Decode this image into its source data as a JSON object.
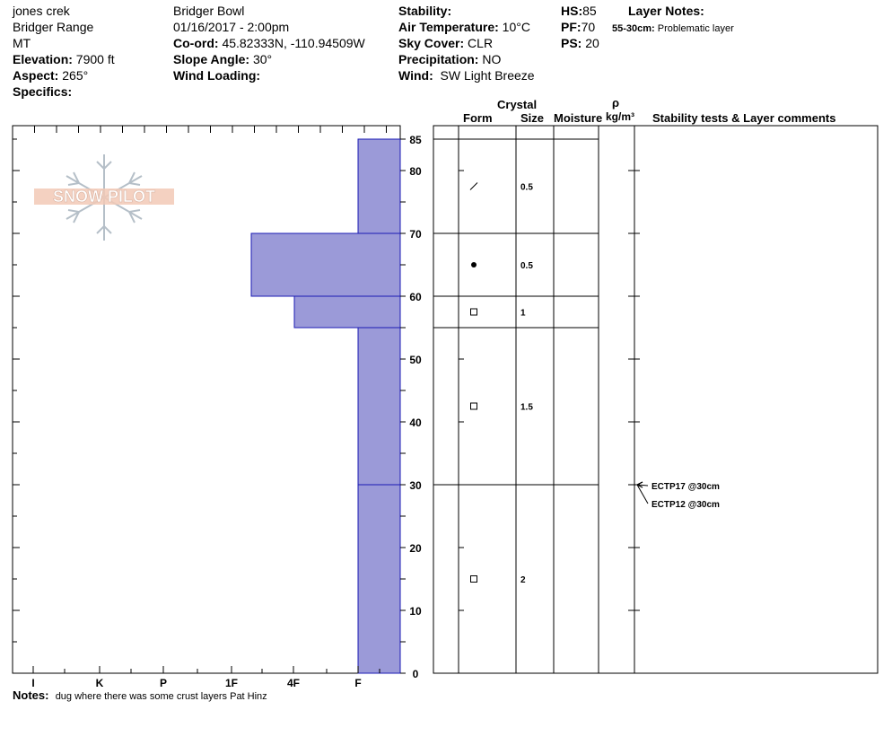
{
  "header": {
    "col1": [
      "jones crek",
      "Bridger Range",
      "MT"
    ],
    "elevation": {
      "label": "Elevation:",
      "value": "7900 ft"
    },
    "aspect": {
      "label": "Aspect:",
      "value": "265°"
    },
    "specifics": {
      "label": "Specifics:",
      "value": ""
    },
    "location": "Bridger Bowl",
    "datetime": "01/16/2017 - 2:00pm",
    "coord": {
      "label": "Co-ord:",
      "value": "45.82333N, -110.94509W"
    },
    "slope": {
      "label": "Slope Angle:",
      "value": "30°"
    },
    "wind_loading": {
      "label": "Wind Loading:",
      "value": ""
    },
    "stability": {
      "label": "Stability:",
      "value": ""
    },
    "air_temp": {
      "label": "Air Temperature:",
      "value": "10°C"
    },
    "sky": {
      "label": "Sky Cover:",
      "value": "CLR"
    },
    "precip": {
      "label": "Precipitation:",
      "value": "NO"
    },
    "wind": {
      "label": "Wind:",
      "value": "SW Light Breeze"
    },
    "hs": {
      "label": "HS:",
      "value": "85"
    },
    "pf": {
      "label": "PF:",
      "value": "70"
    },
    "ps": {
      "label": "PS:",
      "value": "20"
    },
    "layer_notes": {
      "label": "Layer Notes:",
      "range": "55-30cm:",
      "text": "Problematic layer"
    }
  },
  "logo_text": "SNOW PILOT",
  "columns": {
    "crystal": "Crystal",
    "form": "Form",
    "size": "Size",
    "moisture": "Moisture",
    "rho": "ρ",
    "density_unit": "kg/m³",
    "stability": "Stability tests & Layer comments"
  },
  "chart_data": {
    "type": "bar",
    "orientation": "horizontal",
    "hardness_scale": [
      "I",
      "K",
      "P",
      "1F",
      "4F",
      "F"
    ],
    "y_ticks": [
      0,
      10,
      20,
      30,
      40,
      50,
      60,
      70,
      80,
      85
    ],
    "ylim": [
      0,
      85
    ],
    "bar_color": "#9b9ad8",
    "layers": [
      {
        "top": 85,
        "bottom": 70,
        "hardness": "F",
        "size": "0.5",
        "form": "decomposing"
      },
      {
        "top": 70,
        "bottom": 60,
        "hardness": "1F+",
        "size": "0.5",
        "form": "rounded"
      },
      {
        "top": 60,
        "bottom": 55,
        "hardness": "4F+",
        "size": "1",
        "form": "faceted"
      },
      {
        "top": 55,
        "bottom": 30,
        "hardness": "F",
        "size": "1.5",
        "form": "faceted"
      },
      {
        "top": 30,
        "bottom": 0,
        "hardness": "F",
        "size": "2",
        "form": "faceted"
      }
    ],
    "tests": [
      {
        "depth": 30,
        "label": "ECTP17 @30cm"
      },
      {
        "depth": 30,
        "label": "ECTP12 @30cm"
      }
    ]
  },
  "notes": {
    "label": "Notes:",
    "text": "dug where there was some crust layers Pat Hinz"
  }
}
